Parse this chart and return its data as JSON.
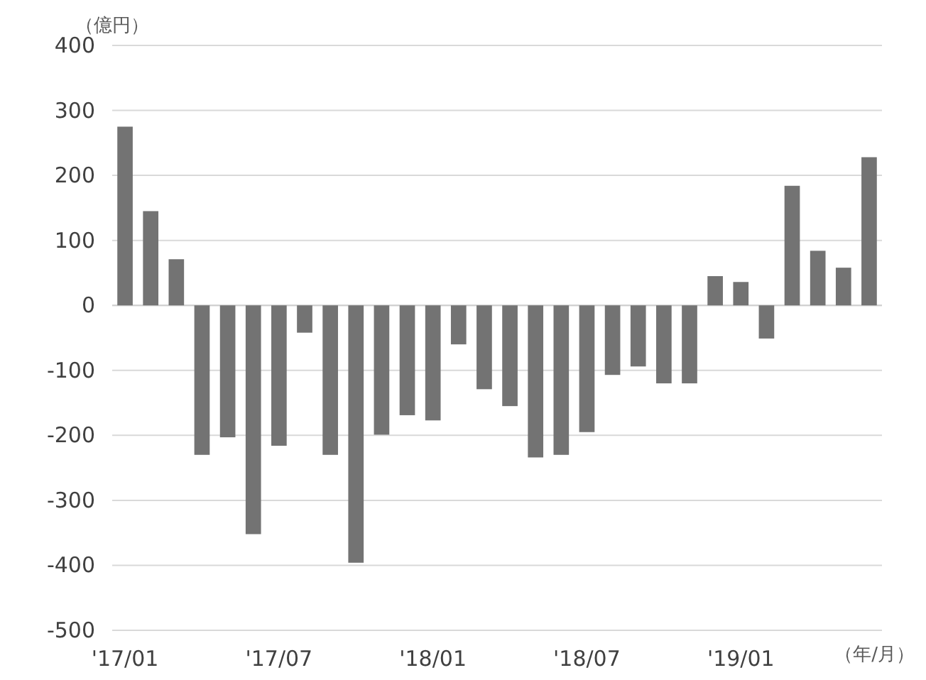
{
  "chart_data": {
    "type": "bar",
    "ylabel": "（億円）",
    "xlabel": "（年/月）",
    "categories": [
      "'17/01",
      null,
      null,
      null,
      null,
      null,
      "'17/07",
      null,
      null,
      null,
      null,
      null,
      "'18/01",
      null,
      null,
      null,
      null,
      null,
      "'18/07",
      null,
      null,
      null,
      null,
      null,
      "'19/01",
      null,
      null,
      null,
      null,
      null
    ],
    "values": [
      275,
      145,
      71,
      -230,
      -203,
      -352,
      -216,
      -42,
      -230,
      -396,
      -199,
      -169,
      -177,
      -60,
      -129,
      -155,
      -234,
      -230,
      -195,
      -107,
      -94,
      -120,
      -120,
      45,
      36,
      -51,
      184,
      84,
      58,
      228
    ],
    "color": "#737373",
    "ylim": [
      -500,
      400
    ],
    "yticks": [
      -500,
      -400,
      -300,
      -200,
      -100,
      0,
      100,
      200,
      300,
      400
    ],
    "grid": "y"
  }
}
